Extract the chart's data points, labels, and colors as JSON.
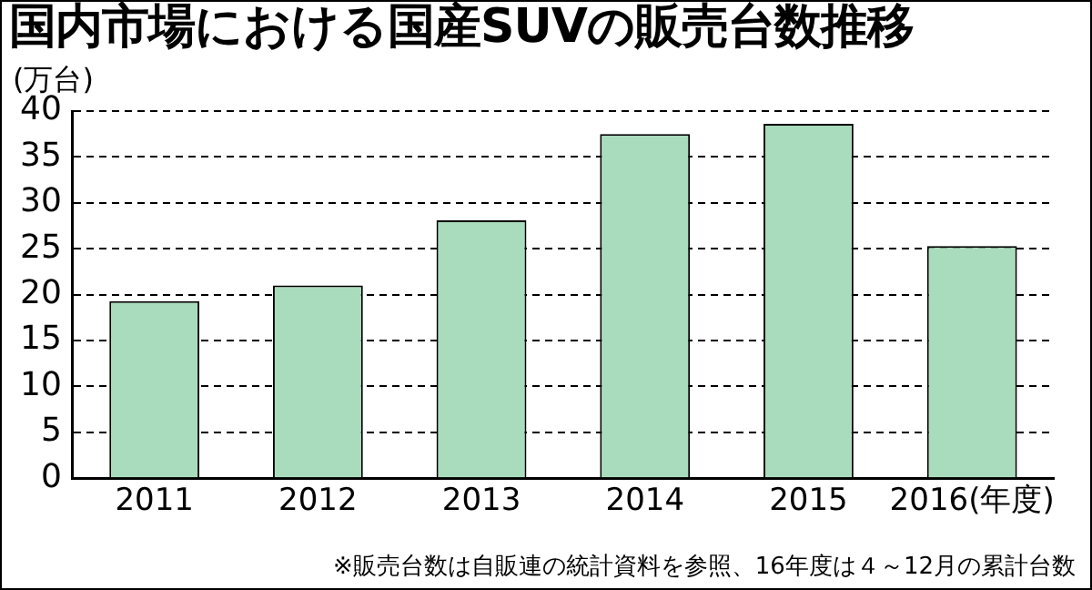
{
  "chart_data": {
    "type": "bar",
    "title": "国内市場における国産SUVの販売台数推移",
    "ylabel": "(万台)",
    "categories": [
      "2011",
      "2012",
      "2013",
      "2014",
      "2015",
      "2016(年度)"
    ],
    "values": [
      19.3,
      21.0,
      28.1,
      37.5,
      38.6,
      25.3
    ],
    "color": "#a9dcbc",
    "ylim": [
      0,
      40
    ],
    "yticks": [
      0,
      5,
      10,
      15,
      20,
      25,
      30,
      35,
      40
    ],
    "grid": "y",
    "legend": false,
    "annotations": [
      "※販売台数は自販連の統計資料を参照、16年度は４～12月の累計台数"
    ]
  }
}
